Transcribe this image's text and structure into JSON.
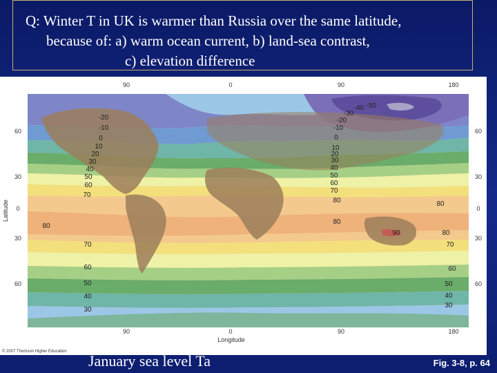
{
  "question": {
    "line1": "Q: Winter T in UK is warmer than Russia over the same latitude,",
    "line2": "because of: a) warm ocean current, b) land-sea contrast,",
    "line3": "c) elevation difference"
  },
  "map": {
    "top_longitude_ticks": [
      "90",
      "0",
      "90",
      "180"
    ],
    "bottom_longitude_ticks": [
      "90",
      "0",
      "90",
      "180"
    ],
    "left_latitude_ticks": [
      "60",
      "30",
      "0",
      "30",
      "60"
    ],
    "right_latitude_ticks": [
      "60",
      "30",
      "0",
      "30",
      "60"
    ],
    "x_axis_title": "Longitude",
    "y_axis_title": "Latitude",
    "copyright": "© 2007 Thomson Higher Education",
    "isotherm_labels": {
      "west_column": [
        "-20",
        "-10",
        "0",
        "10",
        "20",
        "30",
        "40",
        "50",
        "60",
        "70"
      ],
      "pacific_west": "80",
      "west_south": [
        "70",
        "60",
        "50",
        "40",
        "30"
      ],
      "north_asia": [
        "-40",
        "-50",
        "-30",
        "-20",
        "-10"
      ],
      "asia_column": [
        "0",
        "10",
        "20",
        "30",
        "40",
        "50",
        "60",
        "70",
        "80"
      ],
      "east_equator": "80",
      "indian_ocean": "80",
      "australia_hot": "90",
      "east_south": [
        "80",
        "70",
        "60",
        "50",
        "40",
        "30"
      ]
    },
    "band_colors": {
      "deep_purple": "#5d4f9e",
      "purple": "#7b6fb8",
      "blue_violet": "#7f86c7",
      "blue": "#6f9bd2",
      "light_blue": "#9cc6e6",
      "teal": "#6fb6a8",
      "green": "#6aac6a",
      "light_green": "#a6cf86",
      "pale_yellow": "#eef2a6",
      "yellow": "#f3e07c",
      "peach": "#f4c98e",
      "orange": "#eeb27a",
      "land_brown": "#9b7e5a",
      "hot_red": "#c45b55"
    }
  },
  "caption": "January sea level Ta",
  "figure_ref": "Fig. 3-8, p. 64"
}
